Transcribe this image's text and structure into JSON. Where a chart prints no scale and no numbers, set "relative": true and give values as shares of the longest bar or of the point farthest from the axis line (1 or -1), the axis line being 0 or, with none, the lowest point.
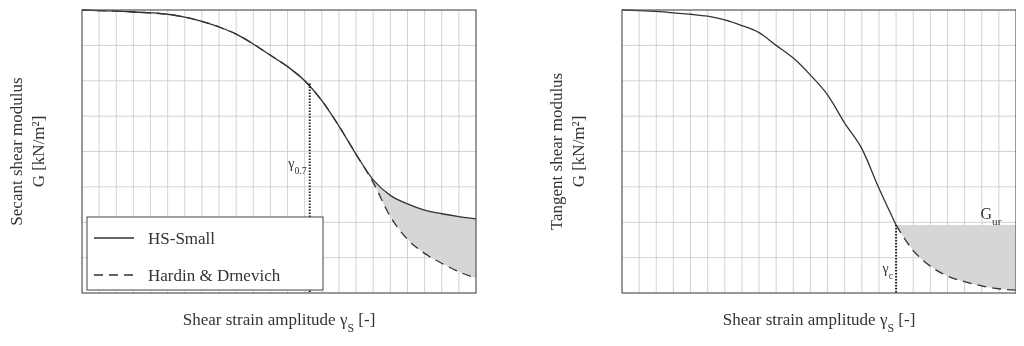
{
  "chart_data": [
    {
      "type": "line",
      "relative": true,
      "xlabel": "Shear strain amplitude γ$_{S}$ [-]",
      "ylabel": "Secant shear modulus\nG [kN/m²]",
      "categories": [
        null,
        null,
        null,
        null,
        null,
        null,
        null,
        null,
        null,
        null,
        null,
        null,
        null,
        null,
        null,
        null,
        null,
        null,
        null,
        null,
        null,
        null,
        null,
        null
      ],
      "legend": "bottom left",
      "grid": true,
      "annotations": [
        "γ$_{0.7}$"
      ],
      "series": [
        {
          "name": "HS-Small",
          "color": "#333333",
          "line_style": "solid",
          "values": [
            1,
            0.998,
            0.996,
            0.993,
            0.99,
            0.985,
            0.975,
            0.96,
            0.94,
            0.915,
            0.88,
            0.84,
            0.8,
            0.75,
            0.68,
            0.59,
            0.49,
            0.4,
            0.345,
            0.315,
            0.293,
            0.28,
            0.27,
            0.262
          ]
        },
        {
          "name": "Hardin & Drnevich",
          "color": "#333333",
          "line_style": "dashed",
          "values": [
            1,
            0.998,
            0.996,
            0.993,
            0.99,
            0.985,
            0.975,
            0.96,
            0.94,
            0.915,
            0.88,
            0.84,
            0.8,
            0.75,
            0.68,
            0.59,
            0.49,
            0.39,
            0.27,
            0.19,
            0.14,
            0.105,
            0.075,
            0.053
          ]
        }
      ]
    },
    {
      "type": "line",
      "relative": true,
      "xlabel": "Shear strain amplitude γ$_{S}$ [-]",
      "ylabel": "Tangent shear modulus\nG [kN/m²]",
      "categories": [
        null,
        null,
        null,
        null,
        null,
        null,
        null,
        null,
        null,
        null,
        null,
        null,
        null,
        null,
        null,
        null,
        null,
        null,
        null,
        null,
        null,
        null,
        null,
        null
      ],
      "grid": true,
      "annotations": [
        "γ$_{c}$",
        "G$_{ur}$"
      ],
      "series": [
        {
          "color": "#333333",
          "line_style": "solid",
          "values": [
            1,
            0.998,
            0.995,
            0.99,
            0.985,
            0.978,
            0.965,
            0.945,
            0.92,
            0.875,
            0.83,
            0.77,
            0.7,
            0.6,
            0.51,
            0.37,
            0.24,
            null,
            null,
            null,
            null,
            null,
            null,
            null
          ]
        },
        {
          "color": "#333333",
          "line_style": "dashed",
          "values": [
            null,
            null,
            null,
            null,
            null,
            null,
            null,
            null,
            null,
            null,
            null,
            null,
            null,
            null,
            null,
            null,
            0.24,
            0.15,
            0.095,
            0.06,
            0.04,
            0.025,
            0.015,
            0.01
          ]
        }
      ]
    }
  ]
}
